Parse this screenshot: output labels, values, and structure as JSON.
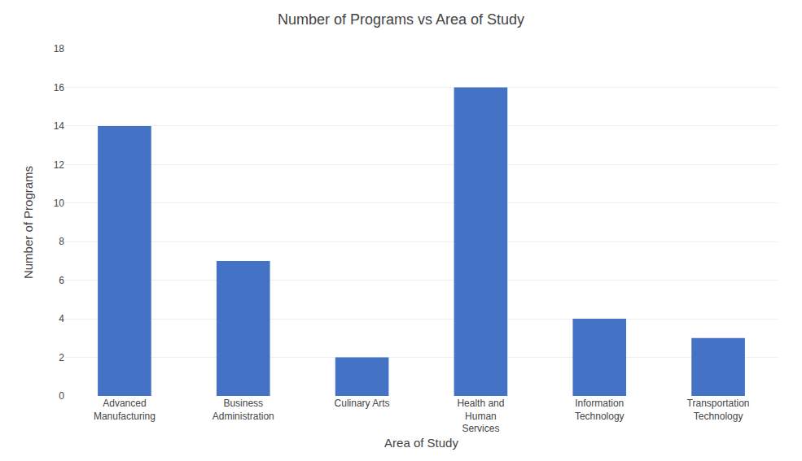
{
  "chart_data": {
    "type": "bar",
    "title": "Number of Programs vs Area of Study",
    "xlabel": "Area of Study",
    "ylabel": "Number of Programs",
    "categories": [
      "Advanced\nManufacturing",
      "Business\nAdministration",
      "Culinary Arts",
      "Health and\nHuman\nServices",
      "Information\nTechnology",
      "Transportation\nTechnology"
    ],
    "values": [
      14,
      7,
      2,
      16,
      4,
      3
    ],
    "color": "#4472C4",
    "ylim": [
      0,
      18
    ],
    "yticks": [
      0,
      2,
      4,
      6,
      8,
      10,
      12,
      14,
      16,
      18
    ],
    "grid": true
  }
}
